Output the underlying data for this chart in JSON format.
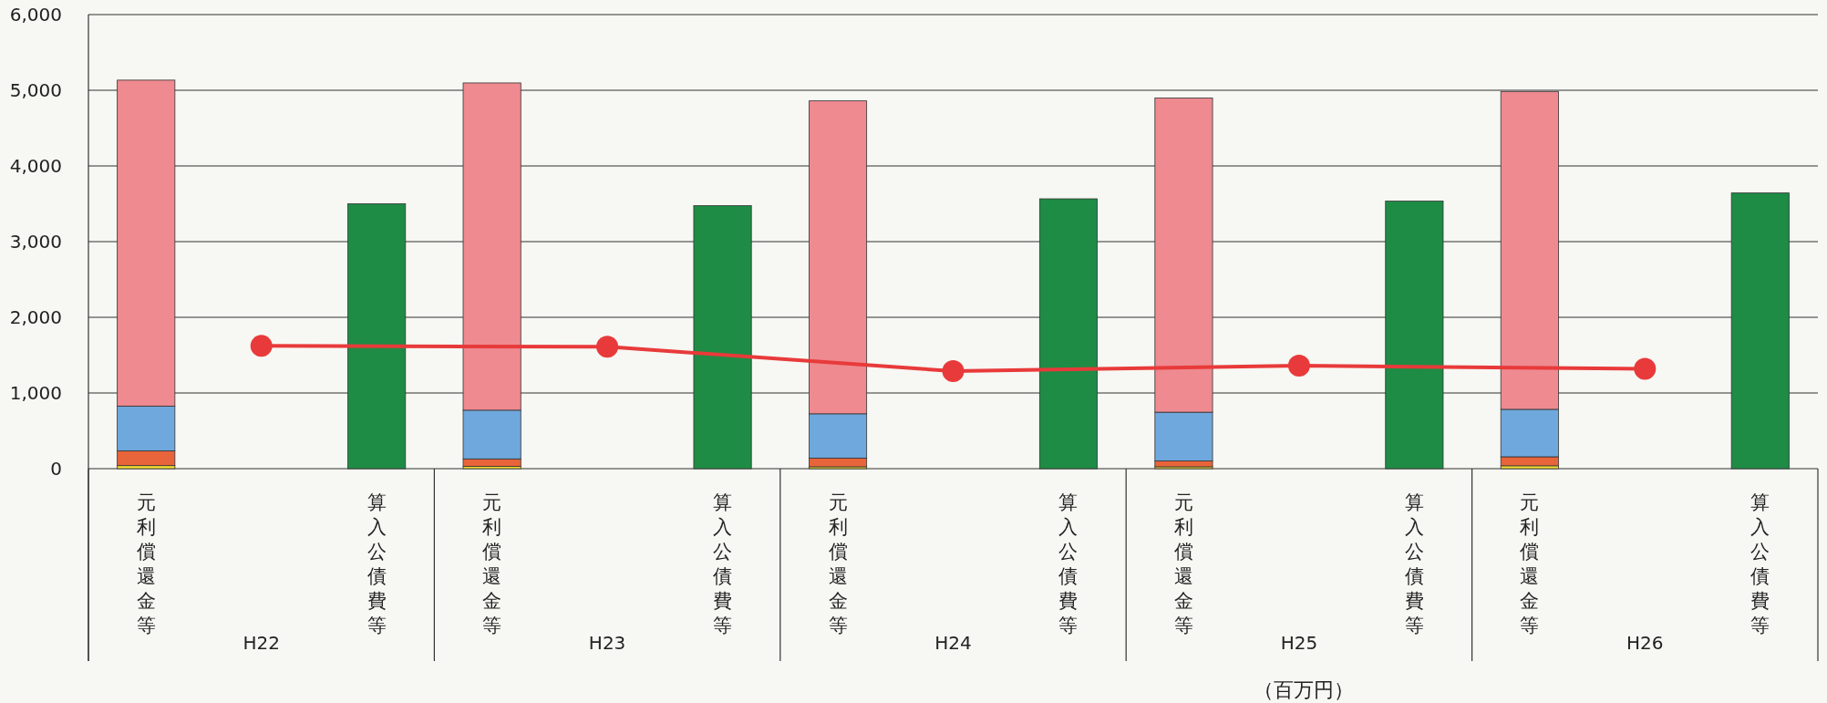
{
  "chart_data": {
    "type": "bar",
    "stacked": true,
    "grid": "y",
    "categories": [
      "元利償還金等",
      null,
      "算入公債費等",
      "元利償還金等",
      null,
      "算入公債費等",
      "元利償還金等",
      null,
      "算入公債費等",
      "元利償還金等",
      null,
      "算入公債費等",
      "元利償還金等",
      null,
      "算入公債費等"
    ],
    "series": [
      {
        "color": "#f2e030",
        "values": [
          40,
          null,
          null,
          30,
          null,
          null,
          25,
          null,
          null,
          25,
          null,
          null,
          38,
          null,
          null
        ]
      },
      {
        "color": "#e8643a",
        "values": [
          196,
          null,
          null,
          99,
          null,
          null,
          115,
          null,
          null,
          77,
          null,
          null,
          119,
          null,
          null
        ]
      },
      {
        "color": "#6fa8dc",
        "values": [
          591,
          null,
          null,
          644,
          null,
          null,
          585,
          null,
          null,
          644,
          null,
          null,
          627,
          null,
          null
        ]
      },
      {
        "color": "#ee8a90",
        "values": [
          4307,
          null,
          null,
          4324,
          null,
          null,
          4135,
          null,
          null,
          4152,
          null,
          null,
          4200,
          null,
          null
        ]
      },
      {
        "color": "#1e8c45",
        "values": [
          null,
          null,
          3501,
          null,
          null,
          3475,
          null,
          null,
          3566,
          null,
          null,
          3535,
          null,
          null,
          3643
        ]
      },
      {
        "type": "line",
        "color": "#e83a3a",
        "marker": "circle",
        "values": [
          null,
          1622,
          null,
          null,
          1611,
          null,
          null,
          1289,
          null,
          null,
          1362,
          null,
          null,
          1319,
          null
        ]
      }
    ],
    "ylim": [
      0,
      6000
    ],
    "yticks": [
      {
        "value": 0,
        "label": "0"
      },
      {
        "value": 1000,
        "label": "1,000"
      },
      {
        "value": 2000,
        "label": "2,000"
      },
      {
        "value": 3000,
        "label": "3,000"
      },
      {
        "value": 4000,
        "label": "4,000"
      },
      {
        "value": 5000,
        "label": "5,000"
      },
      {
        "value": 6000,
        "label": "6,000"
      }
    ],
    "annotations": [
      "H22",
      "H23",
      "H24",
      "H25",
      "H26",
      "（百万円）"
    ]
  }
}
